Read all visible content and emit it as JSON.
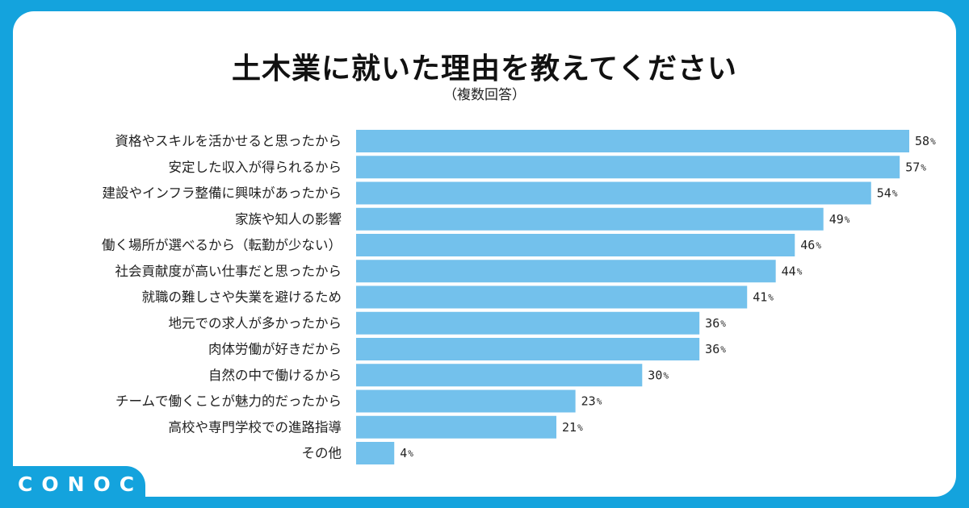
{
  "chart_data": {
    "type": "bar",
    "orientation": "horizontal",
    "title": "土木業に就いた理由を教えてください",
    "subtitle": "（複数回答）",
    "unit": "%",
    "xlim": [
      0,
      58
    ],
    "bar_color": "#73c1ec",
    "categories": [
      "資格やスキルを活かせると思ったから",
      "安定した収入が得られるから",
      "建設やインフラ整備に興味があったから",
      "家族や知人の影響",
      "働く場所が選べるから（転勤が少ない）",
      "社会貢献度が高い仕事だと思ったから",
      "就職の難しさや失業を避けるため",
      "地元での求人が多かったから",
      "肉体労働が好きだから",
      "自然の中で働けるから",
      "チームで働くことが魅力的だったから",
      "高校や専門学校での進路指導",
      "その他"
    ],
    "values": [
      58,
      57,
      54,
      49,
      46,
      44,
      41,
      36,
      36,
      30,
      23,
      21,
      4
    ]
  },
  "brand": {
    "logo": "CONOC",
    "frame_color": "#14a3dd"
  }
}
